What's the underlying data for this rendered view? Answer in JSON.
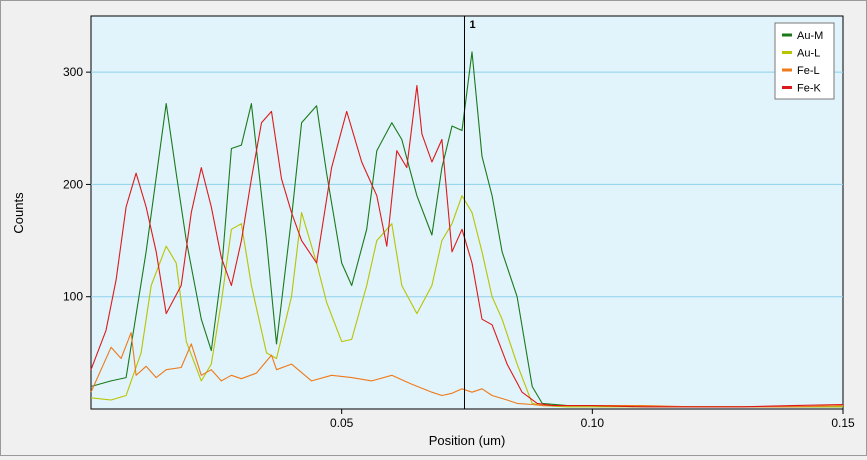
{
  "chart_data": {
    "type": "line",
    "title": "",
    "xlabel": "Position (um)",
    "ylabel": "Counts",
    "xlim": [
      0,
      0.15
    ],
    "ylim": [
      0,
      350
    ],
    "x_ticks": [
      0.05,
      0.1,
      0.15
    ],
    "x_tick_labels": [
      "0.05",
      "0.10",
      "0.15"
    ],
    "y_ticks": [
      100,
      200,
      300
    ],
    "y_tick_labels": [
      "100",
      "200",
      "300"
    ],
    "grid": "horizontal",
    "background": "#e1f3fb",
    "gridline_color": "#8dd2ec",
    "legend": {
      "placement": "top-right"
    },
    "marker": {
      "x": 0.0745,
      "label": "1"
    },
    "series": [
      {
        "name": "Au-M",
        "color": "#1a7a1a",
        "x": [
          0,
          0.004,
          0.007,
          0.011,
          0.015,
          0.017,
          0.019,
          0.022,
          0.024,
          0.026,
          0.028,
          0.03,
          0.032,
          0.035,
          0.037,
          0.04,
          0.042,
          0.045,
          0.047,
          0.05,
          0.052,
          0.055,
          0.057,
          0.06,
          0.062,
          0.065,
          0.068,
          0.07,
          0.072,
          0.074,
          0.076,
          0.078,
          0.08,
          0.082,
          0.085,
          0.088,
          0.09,
          0.095,
          0.1,
          0.11,
          0.12,
          0.13,
          0.14,
          0.15
        ],
        "values": [
          20,
          25,
          28,
          140,
          272,
          210,
          150,
          80,
          52,
          120,
          232,
          235,
          272,
          150,
          58,
          170,
          255,
          270,
          210,
          130,
          110,
          160,
          230,
          255,
          240,
          190,
          155,
          215,
          252,
          248,
          318,
          225,
          190,
          140,
          100,
          20,
          5,
          3,
          3,
          2,
          2,
          2,
          2,
          2
        ]
      },
      {
        "name": "Au-L",
        "color": "#b8c400",
        "x": [
          0,
          0.004,
          0.007,
          0.01,
          0.012,
          0.015,
          0.017,
          0.019,
          0.022,
          0.024,
          0.026,
          0.028,
          0.03,
          0.032,
          0.035,
          0.037,
          0.04,
          0.042,
          0.045,
          0.047,
          0.05,
          0.052,
          0.055,
          0.057,
          0.06,
          0.062,
          0.065,
          0.068,
          0.07,
          0.072,
          0.074,
          0.076,
          0.078,
          0.08,
          0.082,
          0.085,
          0.088,
          0.09,
          0.095,
          0.1,
          0.11,
          0.12,
          0.13,
          0.14,
          0.15
        ],
        "values": [
          10,
          8,
          12,
          50,
          110,
          145,
          130,
          60,
          25,
          40,
          95,
          160,
          165,
          110,
          50,
          45,
          100,
          175,
          130,
          95,
          60,
          62,
          110,
          150,
          165,
          110,
          85,
          110,
          150,
          165,
          190,
          175,
          140,
          100,
          80,
          40,
          5,
          3,
          2,
          2,
          2,
          2,
          2,
          2,
          2
        ]
      },
      {
        "name": "Fe-L",
        "color": "#ee7a1a",
        "x": [
          0,
          0.004,
          0.006,
          0.008,
          0.009,
          0.011,
          0.013,
          0.015,
          0.018,
          0.02,
          0.022,
          0.024,
          0.026,
          0.028,
          0.03,
          0.033,
          0.036,
          0.037,
          0.04,
          0.044,
          0.048,
          0.052,
          0.056,
          0.06,
          0.064,
          0.068,
          0.07,
          0.072,
          0.074,
          0.076,
          0.078,
          0.08,
          0.083,
          0.085,
          0.088,
          0.09,
          0.095,
          0.1,
          0.11,
          0.12,
          0.13,
          0.14,
          0.15
        ],
        "values": [
          15,
          55,
          45,
          68,
          30,
          38,
          28,
          35,
          37,
          58,
          30,
          35,
          25,
          30,
          27,
          32,
          48,
          35,
          40,
          25,
          30,
          28,
          25,
          30,
          22,
          15,
          12,
          14,
          18,
          15,
          18,
          12,
          8,
          5,
          4,
          3,
          3,
          3,
          3,
          2,
          2,
          2,
          3
        ]
      },
      {
        "name": "Fe-K",
        "color": "#dd1a1a",
        "x": [
          0,
          0.003,
          0.005,
          0.007,
          0.009,
          0.011,
          0.013,
          0.015,
          0.018,
          0.02,
          0.022,
          0.024,
          0.026,
          0.028,
          0.03,
          0.032,
          0.034,
          0.036,
          0.038,
          0.04,
          0.042,
          0.045,
          0.048,
          0.051,
          0.054,
          0.057,
          0.059,
          0.061,
          0.063,
          0.065,
          0.066,
          0.068,
          0.07,
          0.072,
          0.074,
          0.076,
          0.078,
          0.08,
          0.083,
          0.086,
          0.089,
          0.092,
          0.095,
          0.1,
          0.11,
          0.12,
          0.13,
          0.14,
          0.15
        ],
        "values": [
          35,
          70,
          115,
          180,
          210,
          180,
          140,
          85,
          110,
          175,
          215,
          180,
          135,
          110,
          150,
          205,
          255,
          265,
          205,
          175,
          150,
          130,
          215,
          265,
          220,
          190,
          145,
          230,
          215,
          288,
          245,
          220,
          240,
          140,
          160,
          130,
          80,
          75,
          40,
          15,
          5,
          3,
          3,
          3,
          2,
          2,
          2,
          3,
          4
        ]
      }
    ]
  }
}
